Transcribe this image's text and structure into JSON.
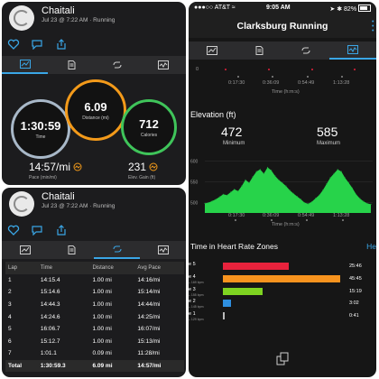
{
  "activity": {
    "user": "Chaitali",
    "subtitle": "Jul 23 @ 7:22 AM · Running"
  },
  "summary": {
    "time": {
      "value": "1:30:59",
      "label": "Time",
      "color": "#a8b8c8"
    },
    "distance": {
      "value": "6.09",
      "label": "Distance (mi)",
      "color": "#f39a1a"
    },
    "calories": {
      "value": "712",
      "label": "Calories",
      "color": "#3fc45a"
    },
    "pace": {
      "value": "14:57/mi",
      "label": "Pace (min/mi)"
    },
    "elev_gain": {
      "value": "231",
      "label": "Elev. Gain (ft)"
    }
  },
  "laps": {
    "headers": [
      "Lap",
      "Time",
      "Distance",
      "Avg Pace"
    ],
    "rows": [
      [
        "1",
        "14:15.4",
        "1.00 mi",
        "14:16/mi"
      ],
      [
        "2",
        "15:14.6",
        "1.00 mi",
        "15:14/mi"
      ],
      [
        "3",
        "14:44.3",
        "1.00 mi",
        "14:44/mi"
      ],
      [
        "4",
        "14:24.6",
        "1.00 mi",
        "14:25/mi"
      ],
      [
        "5",
        "16:06.7",
        "1.00 mi",
        "16:07/mi"
      ],
      [
        "6",
        "15:12.7",
        "1.00 mi",
        "15:13/mi"
      ],
      [
        "7",
        "1:01.1",
        "0.09 mi",
        "11:28/mi"
      ]
    ],
    "total": [
      "Total",
      "1:30:59.3",
      "6.09 mi",
      "14:57/mi"
    ]
  },
  "status_bar": {
    "carrier": "AT&T",
    "time": "9:05 AM",
    "battery": "82%"
  },
  "nav": {
    "title": "Clarksburg Running"
  },
  "time_axis": {
    "ticks": [
      "0:17:30",
      "0:36:09",
      "0:54:49",
      "1:13:28"
    ],
    "label": "Time (h:m:s)",
    "first": "0"
  },
  "elevation": {
    "title": "Elevation (ft)",
    "minimum": {
      "value": "472",
      "label": "Minimum"
    },
    "maximum": {
      "value": "585",
      "label": "Maximum"
    },
    "y_ticks": [
      "600",
      "550",
      "500"
    ],
    "color": "#27d34a"
  },
  "chart_data": {
    "type": "area",
    "title": "Elevation (ft)",
    "xlabel": "Time (h:m:s)",
    "ylabel": "",
    "ylim": [
      475,
      610
    ],
    "x_range_minutes": [
      0,
      91
    ],
    "x": [
      0,
      2,
      4,
      6,
      8,
      10,
      12,
      14,
      16,
      18,
      20,
      22,
      24,
      26,
      28,
      30,
      32,
      34,
      36,
      38,
      40,
      42,
      44,
      46,
      48,
      50,
      52,
      54,
      56,
      58,
      60,
      62,
      64,
      66,
      68,
      70,
      72,
      74,
      76,
      78,
      80,
      82,
      84,
      86,
      88,
      90
    ],
    "values": [
      498,
      500,
      504,
      508,
      514,
      520,
      518,
      525,
      532,
      528,
      540,
      555,
      548,
      562,
      575,
      580,
      570,
      585,
      578,
      565,
      555,
      548,
      540,
      530,
      522,
      515,
      508,
      500,
      497,
      502,
      510,
      518,
      530,
      545,
      560,
      570,
      580,
      575,
      560,
      548,
      535,
      520,
      510,
      503,
      498,
      496
    ]
  },
  "hr_zones": {
    "title": "Time in Heart Rate Zones",
    "link": "He",
    "zones": [
      {
        "name": "e 5",
        "range": "",
        "time": "25:46",
        "color": "#e8223c",
        "seconds": 1546
      },
      {
        "name": "e 4",
        "range": "– 169 bpm",
        "time": "45:45",
        "color": "#f7931e",
        "seconds": 2745
      },
      {
        "name": "e 3",
        "range": "– 155 bpm",
        "time": "15:19",
        "color": "#7ed321",
        "seconds": 919
      },
      {
        "name": "e 2",
        "range": "– 145 bpm",
        "time": "3:02",
        "color": "#2e8fe0",
        "seconds": 182
      },
      {
        "name": "e 1",
        "range": "– 129 bpm",
        "time": "0:41",
        "color": "#bbbbbb",
        "seconds": 41
      }
    ]
  }
}
